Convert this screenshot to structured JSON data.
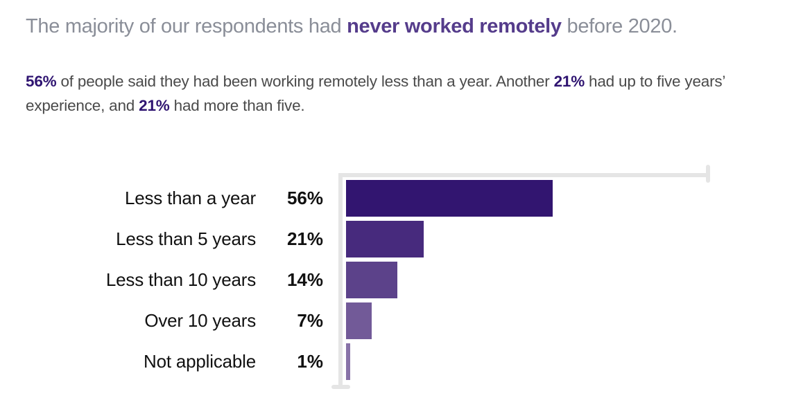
{
  "headline": {
    "prefix": "The majority of our respondents had ",
    "emphasis": "never worked remotely",
    "suffix": " before 2020."
  },
  "summary": {
    "p1": "56%",
    "t1": " of people said they had been working remotely less than a year. Another ",
    "p2": "21%",
    "t2": " had up to five years’ experience, and ",
    "p3": "21%",
    "t3": " had more than five."
  },
  "colors": {
    "headline_gray": "#8a8e98",
    "headline_accent": "#553c8b",
    "summary_accent": "#2f1471",
    "axis": "#e5e5e5",
    "bars": [
      "#321570",
      "#472a7d",
      "#5c428a",
      "#725a98",
      "#8872a8"
    ]
  },
  "chart_data": {
    "type": "bar",
    "orientation": "horizontal",
    "title": "The majority of our respondents had never worked remotely before 2020.",
    "subtitle": "56% of people said they had been working remotely less than a year. Another 21% had up to five years’ experience, and 21% had more than five.",
    "categories": [
      "Less than a year",
      "Less than 5 years",
      "Less than 10 years",
      "Over 10 years",
      "Not applicable"
    ],
    "values": [
      56,
      21,
      14,
      7,
      1
    ],
    "value_labels": [
      "56%",
      "21%",
      "14%",
      "7%",
      "1%"
    ],
    "xlabel": "",
    "ylabel": "",
    "xlim": [
      0,
      100
    ],
    "grid": false,
    "legend": null,
    "units": "%"
  }
}
